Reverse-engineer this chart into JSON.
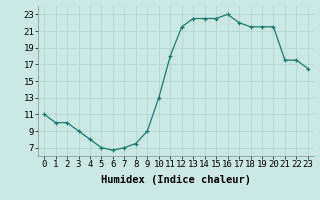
{
  "x": [
    0,
    1,
    2,
    3,
    4,
    5,
    6,
    7,
    8,
    9,
    10,
    11,
    12,
    13,
    14,
    15,
    16,
    17,
    18,
    19,
    20,
    21,
    22,
    23
  ],
  "y": [
    11,
    10,
    10,
    9,
    8,
    7,
    6.7,
    7,
    7.5,
    9,
    13,
    18,
    21.5,
    22.5,
    22.5,
    22.5,
    23,
    22,
    21.5,
    21.5,
    21.5,
    17.5,
    17.5,
    16.5
  ],
  "line_color": "#1a7a6e",
  "marker_color": "#1a7a6e",
  "bg_color": "#cce8e4",
  "grid_color": "#b0d4cf",
  "xlabel": "Humidex (Indice chaleur)",
  "xlim": [
    -0.5,
    23.5
  ],
  "ylim": [
    6,
    24
  ],
  "yticks": [
    7,
    9,
    11,
    13,
    15,
    17,
    19,
    21,
    23
  ],
  "xtick_labels": [
    "0",
    "1",
    "2",
    "3",
    "4",
    "5",
    "6",
    "7",
    "8",
    "9",
    "10",
    "11",
    "12",
    "13",
    "14",
    "15",
    "16",
    "17",
    "18",
    "19",
    "20",
    "21",
    "22",
    "23"
  ],
  "label_fontsize": 7.5,
  "tick_fontsize": 6.5
}
